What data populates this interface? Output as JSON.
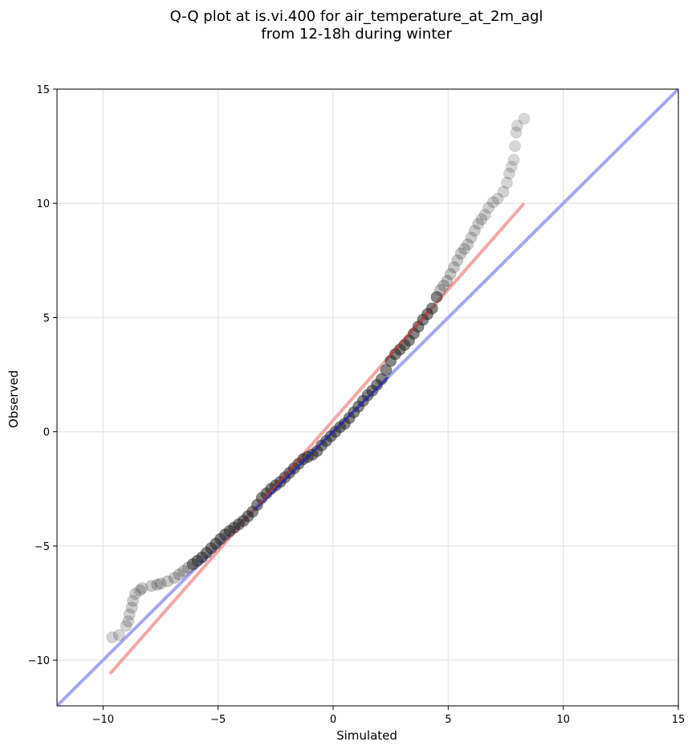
{
  "chart_data": {
    "type": "scatter",
    "title_lines": [
      "Q-Q plot at is.vi.400 for air_temperature_at_2m_agl",
      "from 12-18h during winter"
    ],
    "xlabel": "Simulated",
    "ylabel": "Observed",
    "xlim": [
      -12,
      15
    ],
    "ylim": [
      -12,
      15
    ],
    "xticks": [
      -10,
      -5,
      0,
      5,
      10,
      15
    ],
    "yticks": [
      -10,
      -5,
      0,
      5,
      10,
      15
    ],
    "tick_labels": [
      "−10",
      "−5",
      "0",
      "5",
      "10",
      "15"
    ],
    "grid": true,
    "colors": {
      "points": "#222222",
      "reference_line": "#a6a6f5",
      "fit_line": "#f5a6a6",
      "central_fit": "#e03c3c",
      "central_ref": "#2828c8"
    },
    "reference_line": {
      "x": [
        -12,
        15
      ],
      "y": [
        -12,
        15
      ]
    },
    "fit_line": {
      "x": [
        -9.7,
        8.3
      ],
      "y": [
        -10.6,
        10.0
      ]
    },
    "points": [
      {
        "x": -9.6,
        "y": -9.0
      },
      {
        "x": -9.3,
        "y": -8.9
      },
      {
        "x": -9.0,
        "y": -8.5
      },
      {
        "x": -8.9,
        "y": -8.3
      },
      {
        "x": -8.85,
        "y": -8.0
      },
      {
        "x": -8.75,
        "y": -7.7
      },
      {
        "x": -8.7,
        "y": -7.4
      },
      {
        "x": -8.6,
        "y": -7.1
      },
      {
        "x": -8.4,
        "y": -6.95
      },
      {
        "x": -8.3,
        "y": -6.85
      },
      {
        "x": -7.9,
        "y": -6.75
      },
      {
        "x": -7.65,
        "y": -6.7
      },
      {
        "x": -7.5,
        "y": -6.65
      },
      {
        "x": -7.2,
        "y": -6.55
      },
      {
        "x": -6.9,
        "y": -6.4
      },
      {
        "x": -6.7,
        "y": -6.25
      },
      {
        "x": -6.5,
        "y": -6.1
      },
      {
        "x": -6.3,
        "y": -5.95
      },
      {
        "x": -6.1,
        "y": -5.8
      },
      {
        "x": -5.9,
        "y": -5.65
      },
      {
        "x": -5.7,
        "y": -5.5
      },
      {
        "x": -5.5,
        "y": -5.3
      },
      {
        "x": -5.3,
        "y": -5.1
      },
      {
        "x": -5.1,
        "y": -4.9
      },
      {
        "x": -4.9,
        "y": -4.7
      },
      {
        "x": -4.7,
        "y": -4.5
      },
      {
        "x": -4.5,
        "y": -4.35
      },
      {
        "x": -4.3,
        "y": -4.2
      },
      {
        "x": -4.1,
        "y": -4.05
      },
      {
        "x": -3.9,
        "y": -3.9
      },
      {
        "x": -3.7,
        "y": -3.7
      },
      {
        "x": -3.5,
        "y": -3.5
      },
      {
        "x": -3.3,
        "y": -3.2
      },
      {
        "x": -3.1,
        "y": -2.9
      },
      {
        "x": -2.9,
        "y": -2.7
      },
      {
        "x": -2.7,
        "y": -2.5
      },
      {
        "x": -2.5,
        "y": -2.35
      },
      {
        "x": -2.3,
        "y": -2.2
      },
      {
        "x": -2.1,
        "y": -2.0
      },
      {
        "x": -1.9,
        "y": -1.8
      },
      {
        "x": -1.7,
        "y": -1.6
      },
      {
        "x": -1.5,
        "y": -1.4
      },
      {
        "x": -1.3,
        "y": -1.2
      },
      {
        "x": -1.1,
        "y": -1.1
      },
      {
        "x": -0.9,
        "y": -1.0
      },
      {
        "x": -0.7,
        "y": -0.85
      },
      {
        "x": -0.5,
        "y": -0.6
      },
      {
        "x": -0.3,
        "y": -0.4
      },
      {
        "x": -0.1,
        "y": -0.2
      },
      {
        "x": 0.1,
        "y": 0.0
      },
      {
        "x": 0.3,
        "y": 0.2
      },
      {
        "x": 0.5,
        "y": 0.35
      },
      {
        "x": 0.7,
        "y": 0.6
      },
      {
        "x": 0.9,
        "y": 0.85
      },
      {
        "x": 1.1,
        "y": 1.1
      },
      {
        "x": 1.3,
        "y": 1.35
      },
      {
        "x": 1.5,
        "y": 1.6
      },
      {
        "x": 1.7,
        "y": 1.8
      },
      {
        "x": 1.9,
        "y": 2.05
      },
      {
        "x": 2.1,
        "y": 2.3
      },
      {
        "x": 2.3,
        "y": 2.7
      },
      {
        "x": 2.5,
        "y": 3.1
      },
      {
        "x": 2.7,
        "y": 3.4
      },
      {
        "x": 2.9,
        "y": 3.6
      },
      {
        "x": 3.1,
        "y": 3.8
      },
      {
        "x": 3.3,
        "y": 4.0
      },
      {
        "x": 3.5,
        "y": 4.3
      },
      {
        "x": 3.7,
        "y": 4.6
      },
      {
        "x": 3.9,
        "y": 4.9
      },
      {
        "x": 4.1,
        "y": 5.15
      },
      {
        "x": 4.3,
        "y": 5.4
      },
      {
        "x": 4.5,
        "y": 5.9
      },
      {
        "x": 4.65,
        "y": 6.2
      },
      {
        "x": 4.8,
        "y": 6.4
      },
      {
        "x": 4.95,
        "y": 6.6
      },
      {
        "x": 5.1,
        "y": 6.9
      },
      {
        "x": 5.25,
        "y": 7.2
      },
      {
        "x": 5.4,
        "y": 7.5
      },
      {
        "x": 5.55,
        "y": 7.8
      },
      {
        "x": 5.7,
        "y": 8.0
      },
      {
        "x": 5.85,
        "y": 8.2
      },
      {
        "x": 6.0,
        "y": 8.5
      },
      {
        "x": 6.15,
        "y": 8.8
      },
      {
        "x": 6.3,
        "y": 9.1
      },
      {
        "x": 6.45,
        "y": 9.3
      },
      {
        "x": 6.6,
        "y": 9.5
      },
      {
        "x": 6.75,
        "y": 9.8
      },
      {
        "x": 6.95,
        "y": 10.05
      },
      {
        "x": 7.15,
        "y": 10.2
      },
      {
        "x": 7.4,
        "y": 10.5
      },
      {
        "x": 7.55,
        "y": 10.9
      },
      {
        "x": 7.65,
        "y": 11.3
      },
      {
        "x": 7.75,
        "y": 11.6
      },
      {
        "x": 7.85,
        "y": 11.9
      },
      {
        "x": 7.9,
        "y": 12.5
      },
      {
        "x": 7.95,
        "y": 13.1
      },
      {
        "x": 8.0,
        "y": 13.4
      },
      {
        "x": 8.3,
        "y": 13.7
      }
    ]
  }
}
